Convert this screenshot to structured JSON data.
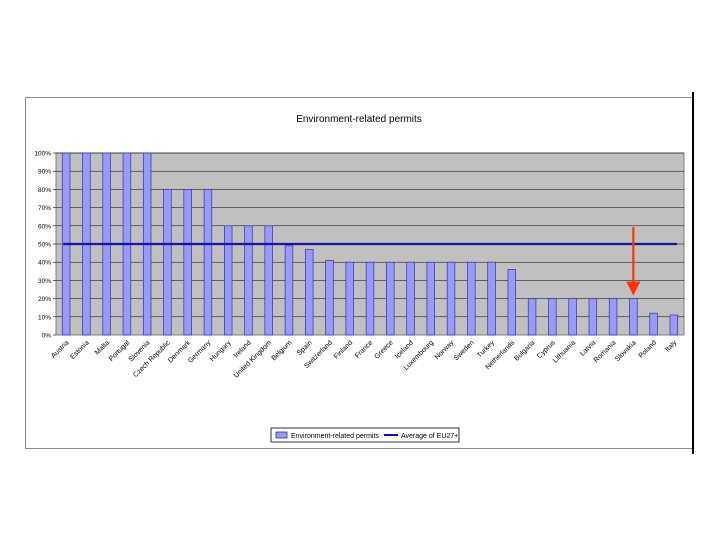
{
  "colors": {
    "plot_background": "#c0c0c0",
    "bar_fill": "#9999ff",
    "bar_stroke": "#333399",
    "average_line": "#1414a0",
    "arrow": "#ff3300"
  },
  "chart_data": {
    "type": "bar",
    "title": "Environment-related permits",
    "xlabel": "",
    "ylabel": "",
    "ylim": [
      0,
      100
    ],
    "yticks": [
      "0%",
      "10%",
      "20%",
      "30%",
      "40%",
      "50%",
      "60%",
      "70%",
      "80%",
      "90%",
      "100%"
    ],
    "grid": true,
    "legend_position": "bottom",
    "categories": [
      "Austria",
      "Estonia",
      "Malta",
      "Portugal",
      "Slovenia",
      "Czech Republic",
      "Denmark",
      "Germany",
      "Hungary",
      "Ireland",
      "United Kingdom",
      "Belgium",
      "Spain",
      "Switzerland",
      "Finland",
      "France",
      "Greece",
      "Iceland",
      "Luxembourg",
      "Norway",
      "Sweden",
      "Turkey",
      "Netherlands",
      "Bulgaria",
      "Cyprus",
      "Lithuania",
      "Latvia",
      "Romania",
      "Slovakia",
      "Poland",
      "Italy"
    ],
    "series": [
      {
        "name": "Environment-related permits",
        "type": "bar",
        "values": [
          100,
          100,
          100,
          100,
          100,
          80,
          80,
          80,
          60,
          60,
          60,
          49,
          47,
          41,
          40,
          40,
          40,
          40,
          40,
          40,
          40,
          40,
          36,
          20,
          20,
          20,
          20,
          20,
          20,
          12,
          11
        ]
      },
      {
        "name": "Average of EU27+",
        "type": "line",
        "value": 50
      }
    ],
    "annotation": {
      "type": "arrow",
      "target_category": "Slovakia"
    }
  }
}
